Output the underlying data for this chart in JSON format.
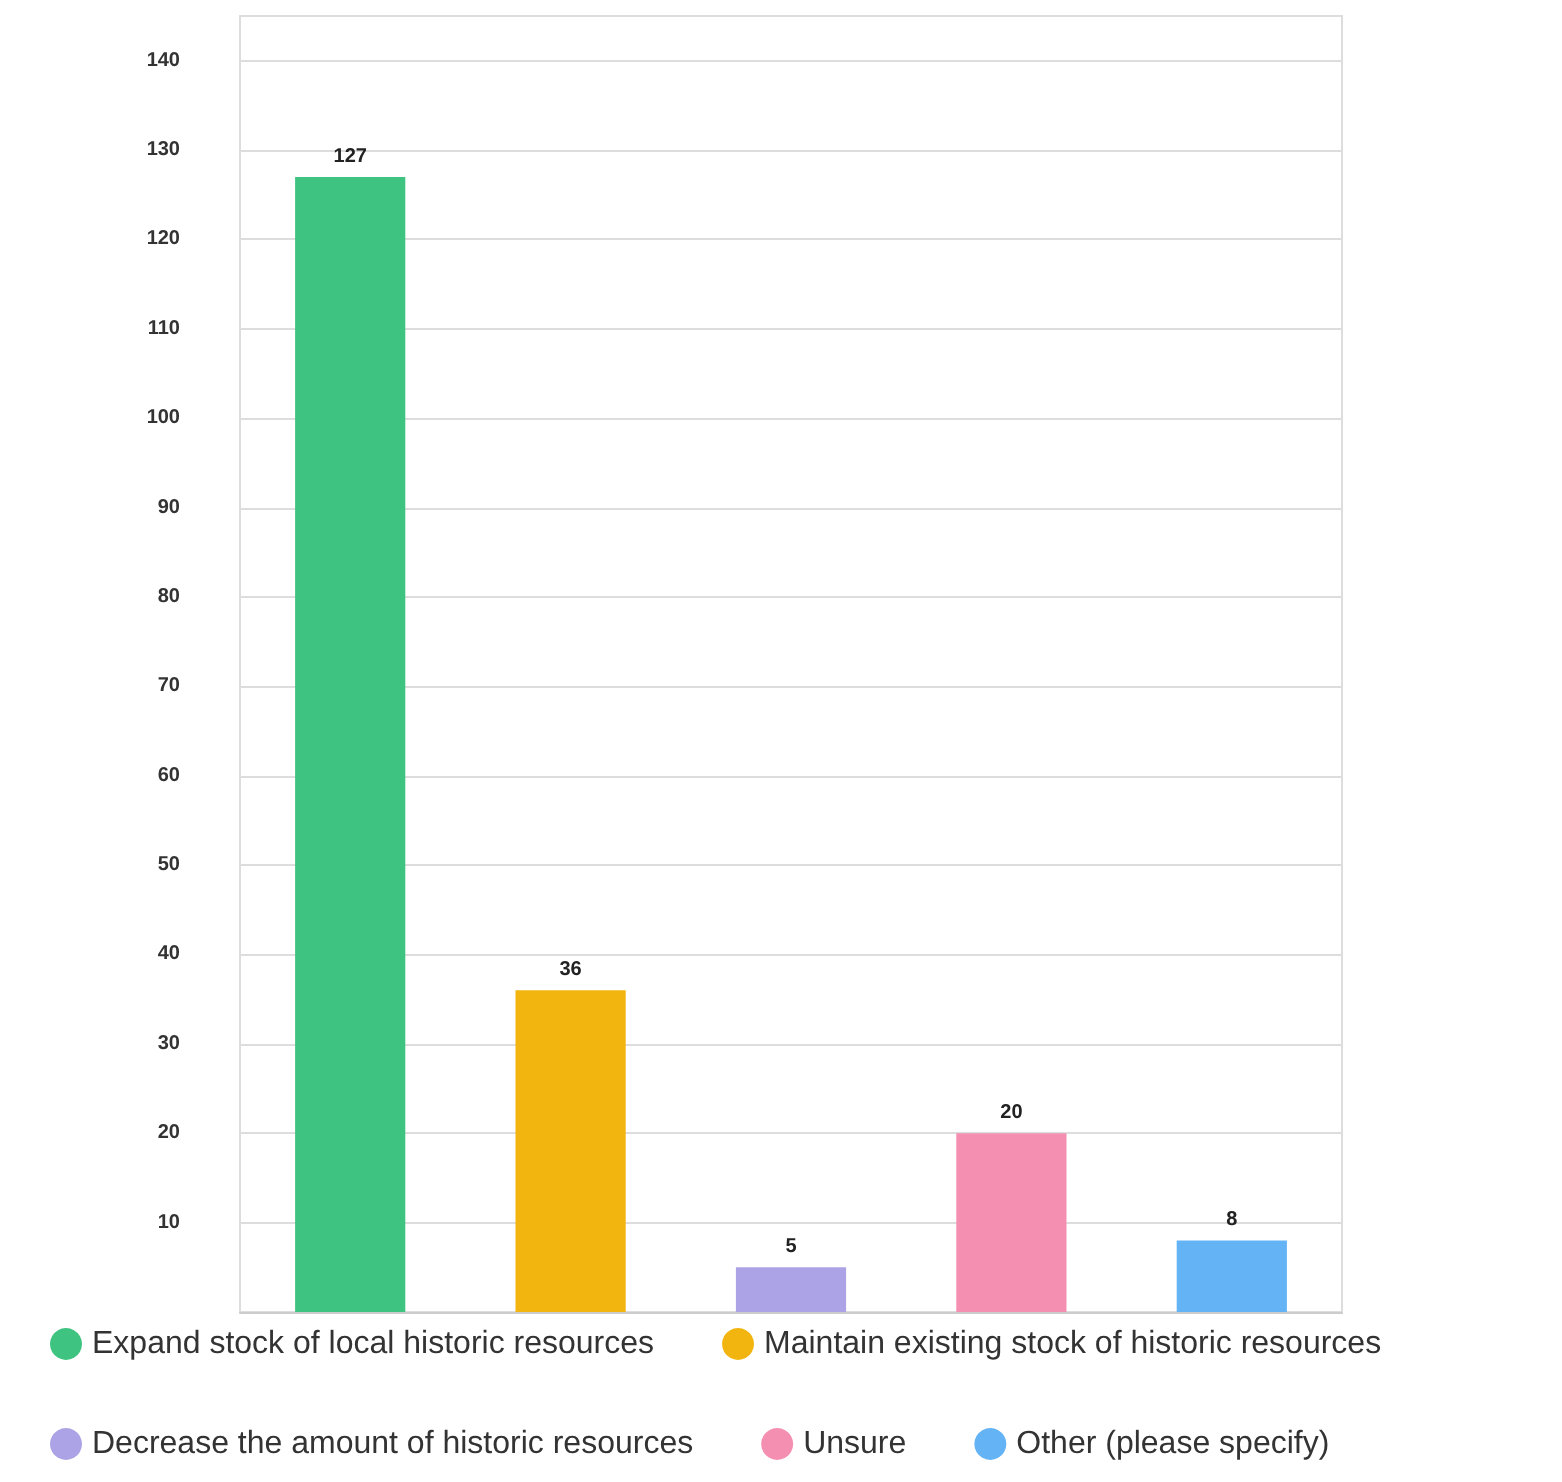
{
  "chart_data": {
    "type": "bar",
    "categories": [
      null,
      null,
      null,
      null,
      null
    ],
    "stacked": true,
    "series": [
      {
        "name": "Expand stock of local historic resources",
        "color": "#3fc380",
        "values": [
          127,
          null,
          null,
          null,
          null
        ]
      },
      {
        "name": "Maintain existing stock of historic resources",
        "color": "#f2b50f",
        "values": [
          null,
          36,
          null,
          null,
          null
        ]
      },
      {
        "name": "Decrease the amount of historic resources",
        "color": "#aba3e6",
        "values": [
          null,
          null,
          5,
          null,
          null
        ]
      },
      {
        "name": "Unsure",
        "color": "#f48fb1",
        "values": [
          null,
          null,
          null,
          20,
          null
        ]
      },
      {
        "name": "Other (please specify)",
        "color": "#63b3f5",
        "values": [
          null,
          null,
          null,
          null,
          8
        ]
      }
    ],
    "ylim": [
      0,
      145
    ],
    "yticks": [
      10,
      20,
      30,
      40,
      50,
      60,
      70,
      80,
      90,
      100,
      110,
      120,
      130,
      140
    ],
    "grid": "y",
    "legend": "bottom",
    "marker": "circle",
    "data_labels": true,
    "tick_labels": "y"
  }
}
